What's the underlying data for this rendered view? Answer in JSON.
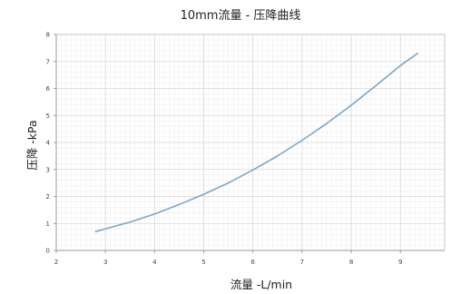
{
  "chart_data": {
    "type": "line",
    "title": "10mm流量 - 压降曲线",
    "xlabel": "流量 -L/min",
    "ylabel": "压降 -kPa",
    "xlim": [
      2,
      9.9
    ],
    "ylim": [
      0,
      8
    ],
    "x_ticks": [
      "2",
      "3",
      "4",
      "5",
      "6",
      "7",
      "8",
      "9"
    ],
    "y_ticks": [
      "0",
      "1",
      "2",
      "3",
      "4",
      "5",
      "6",
      "7",
      "8"
    ],
    "grid": true,
    "legend": "none",
    "series": [
      {
        "color": "#7ea6c8",
        "x": [
          2.8,
          3.5,
          4.0,
          4.5,
          5.0,
          5.5,
          6.0,
          6.5,
          7.0,
          7.5,
          8.0,
          8.5,
          9.0,
          9.35
        ],
        "y": [
          0.7,
          1.05,
          1.35,
          1.7,
          2.08,
          2.5,
          2.98,
          3.5,
          4.08,
          4.7,
          5.38,
          6.1,
          6.85,
          7.3
        ]
      }
    ]
  }
}
